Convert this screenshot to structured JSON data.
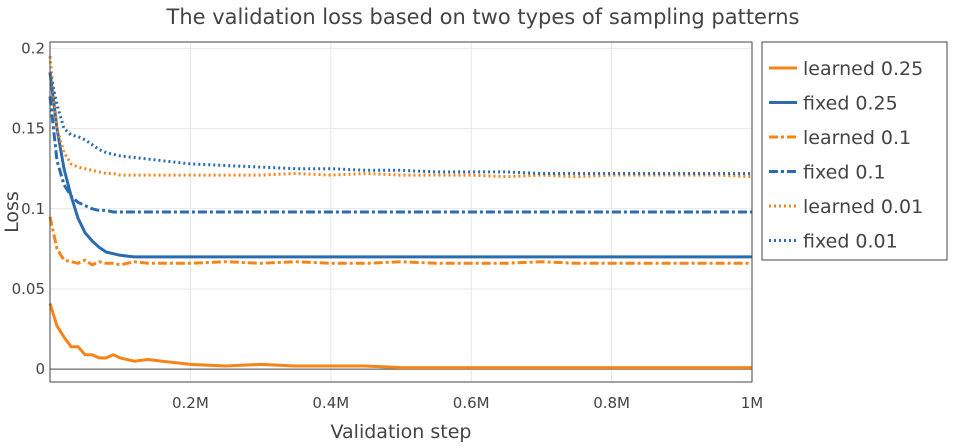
{
  "chart_data": {
    "type": "line",
    "title": "The validation loss based on two types of sampling patterns",
    "xlabel": "Validation step",
    "ylabel": "Loss",
    "xlim": [
      0,
      1000000
    ],
    "ylim": [
      -0.008,
      0.204
    ],
    "grid": true,
    "legend_position": "right",
    "x_ticks": [
      200000,
      400000,
      600000,
      800000,
      1000000
    ],
    "x_tick_labels": [
      "0.2M",
      "0.4M",
      "0.6M",
      "0.8M",
      "1M"
    ],
    "y_ticks": [
      0,
      0.05,
      0.1,
      0.15,
      0.2
    ],
    "y_tick_labels": [
      "0",
      "0.05",
      "0.1",
      "0.15",
      "0.2"
    ],
    "x": [
      0,
      10000,
      20000,
      30000,
      40000,
      50000,
      60000,
      70000,
      80000,
      90000,
      100000,
      120000,
      140000,
      160000,
      180000,
      200000,
      250000,
      300000,
      350000,
      400000,
      450000,
      500000,
      550000,
      600000,
      650000,
      700000,
      750000,
      800000,
      850000,
      900000,
      950000,
      1000000
    ],
    "series": [
      {
        "name": "learned 0.25",
        "color": "#f58518",
        "dash": "solid",
        "values": [
          0.041,
          0.027,
          0.02,
          0.014,
          0.014,
          0.009,
          0.009,
          0.007,
          0.007,
          0.009,
          0.007,
          0.005,
          0.006,
          0.005,
          0.004,
          0.003,
          0.002,
          0.003,
          0.002,
          0.002,
          0.002,
          0.001,
          0.001,
          0.001,
          0.001,
          0.001,
          0.001,
          0.001,
          0.001,
          0.001,
          0.001,
          0.001
        ]
      },
      {
        "name": "fixed 0.25",
        "color": "#2b6cb0",
        "dash": "solid",
        "values": [
          0.185,
          0.15,
          0.125,
          0.108,
          0.094,
          0.085,
          0.08,
          0.076,
          0.073,
          0.072,
          0.071,
          0.07,
          0.07,
          0.07,
          0.07,
          0.07,
          0.07,
          0.07,
          0.07,
          0.07,
          0.07,
          0.07,
          0.07,
          0.07,
          0.07,
          0.07,
          0.07,
          0.07,
          0.07,
          0.07,
          0.07,
          0.07
        ]
      },
      {
        "name": "learned 0.1",
        "color": "#f58518",
        "dash": "dashdot",
        "values": [
          0.095,
          0.075,
          0.068,
          0.067,
          0.066,
          0.068,
          0.065,
          0.067,
          0.066,
          0.066,
          0.065,
          0.067,
          0.066,
          0.066,
          0.066,
          0.066,
          0.067,
          0.066,
          0.067,
          0.066,
          0.066,
          0.067,
          0.066,
          0.066,
          0.066,
          0.067,
          0.066,
          0.066,
          0.066,
          0.066,
          0.066,
          0.066
        ]
      },
      {
        "name": "fixed 0.1",
        "color": "#2b6cb0",
        "dash": "dashdot",
        "values": [
          0.17,
          0.13,
          0.115,
          0.108,
          0.104,
          0.102,
          0.1,
          0.099,
          0.099,
          0.098,
          0.098,
          0.098,
          0.098,
          0.098,
          0.098,
          0.098,
          0.098,
          0.098,
          0.098,
          0.098,
          0.098,
          0.098,
          0.098,
          0.098,
          0.098,
          0.098,
          0.098,
          0.098,
          0.098,
          0.098,
          0.098,
          0.098
        ]
      },
      {
        "name": "learned 0.01",
        "color": "#f58518",
        "dash": "dot",
        "values": [
          0.195,
          0.15,
          0.135,
          0.128,
          0.126,
          0.125,
          0.124,
          0.123,
          0.122,
          0.122,
          0.121,
          0.121,
          0.121,
          0.121,
          0.121,
          0.121,
          0.121,
          0.121,
          0.122,
          0.121,
          0.122,
          0.121,
          0.121,
          0.121,
          0.12,
          0.121,
          0.12,
          0.121,
          0.121,
          0.121,
          0.121,
          0.12
        ]
      },
      {
        "name": "fixed 0.01",
        "color": "#2b6cb0",
        "dash": "dot",
        "values": [
          0.185,
          0.165,
          0.15,
          0.146,
          0.145,
          0.143,
          0.14,
          0.137,
          0.135,
          0.134,
          0.133,
          0.132,
          0.131,
          0.13,
          0.129,
          0.128,
          0.127,
          0.126,
          0.125,
          0.125,
          0.124,
          0.124,
          0.123,
          0.123,
          0.123,
          0.122,
          0.122,
          0.122,
          0.122,
          0.122,
          0.122,
          0.122
        ]
      }
    ]
  }
}
